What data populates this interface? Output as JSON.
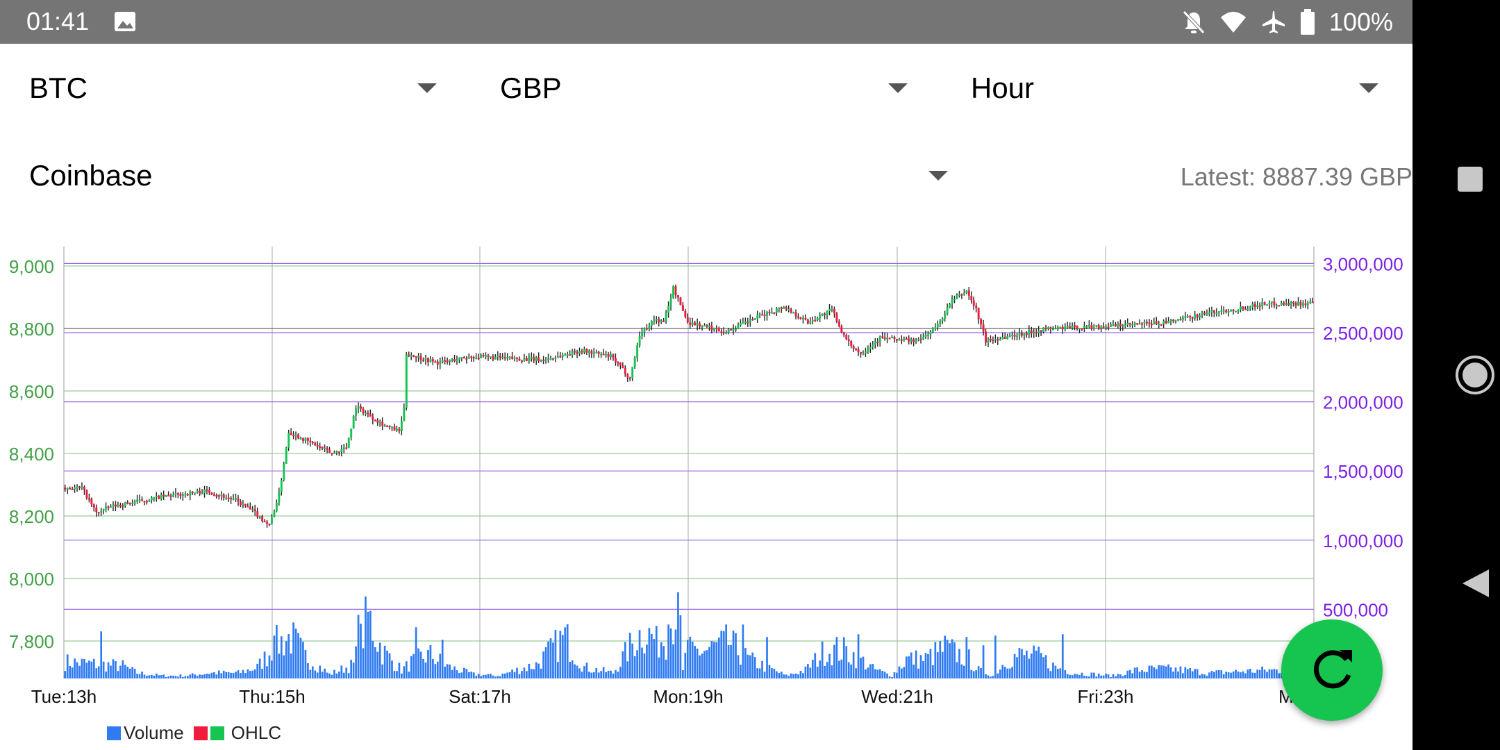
{
  "status_bar": {
    "time": "01:41",
    "battery": "100%",
    "icons": [
      "image-icon",
      "notifications-off-icon",
      "wifi-icon",
      "airplane-mode-icon",
      "battery-icon"
    ]
  },
  "selectors": {
    "coin": "BTC",
    "currency": "GBP",
    "interval": "Hour",
    "exchange": "Coinbase"
  },
  "latest_text": "Latest: 8887.39 GBP",
  "chart_data": {
    "type": "candlestick",
    "left_axis": {
      "ticks": [
        "9,000",
        "8,800",
        "8,600",
        "8,400",
        "8,200",
        "8,000",
        "7,800"
      ],
      "range": [
        7710,
        9030
      ],
      "color": "#43a047"
    },
    "right_axis": {
      "ticks": [
        "3,000,000",
        "2,500,000",
        "2,000,000",
        "1,500,000",
        "1,000,000",
        "500,000"
      ],
      "range": [
        0,
        3000000
      ],
      "color": "#7c1fe8"
    },
    "x_ticks": [
      "Tue:13h",
      "Thu:15h",
      "Sat:17h",
      "Mon:19h",
      "Wed:21h",
      "Fri:23h",
      "M"
    ],
    "reference_line": 8800,
    "ohlc_key_points": [
      [
        0,
        8290
      ],
      [
        8,
        8290
      ],
      [
        14,
        8210
      ],
      [
        20,
        8230
      ],
      [
        40,
        8260
      ],
      [
        60,
        8280
      ],
      [
        72,
        8250
      ],
      [
        80,
        8210
      ],
      [
        86,
        8170
      ],
      [
        90,
        8270
      ],
      [
        94,
        8470
      ],
      [
        112,
        8400
      ],
      [
        118,
        8420
      ],
      [
        122,
        8550
      ],
      [
        134,
        8490
      ],
      [
        140,
        8470
      ],
      [
        142,
        8540
      ],
      [
        143,
        8720
      ],
      [
        156,
        8690
      ],
      [
        170,
        8710
      ],
      [
        200,
        8700
      ],
      [
        216,
        8730
      ],
      [
        228,
        8710
      ],
      [
        234,
        8660
      ],
      [
        236,
        8640
      ],
      [
        240,
        8780
      ],
      [
        246,
        8830
      ],
      [
        250,
        8820
      ],
      [
        254,
        8930
      ],
      [
        260,
        8820
      ],
      [
        276,
        8790
      ],
      [
        290,
        8840
      ],
      [
        300,
        8870
      ],
      [
        310,
        8820
      ],
      [
        320,
        8860
      ],
      [
        326,
        8760
      ],
      [
        332,
        8720
      ],
      [
        340,
        8770
      ],
      [
        356,
        8760
      ],
      [
        364,
        8810
      ],
      [
        370,
        8890
      ],
      [
        376,
        8920
      ],
      [
        380,
        8860
      ],
      [
        384,
        8760
      ],
      [
        390,
        8770
      ],
      [
        410,
        8800
      ],
      [
        440,
        8810
      ],
      [
        460,
        8820
      ],
      [
        476,
        8850
      ],
      [
        486,
        8860
      ],
      [
        500,
        8880
      ]
    ],
    "volume_key_points": [
      [
        0,
        120000
      ],
      [
        24,
        90000
      ],
      [
        30,
        40000
      ],
      [
        40,
        20000
      ],
      [
        50,
        20000
      ],
      [
        60,
        40000
      ],
      [
        72,
        40000
      ],
      [
        80,
        80000
      ],
      [
        88,
        250000
      ],
      [
        94,
        300000
      ],
      [
        100,
        160000
      ],
      [
        110,
        30000
      ],
      [
        120,
        100000
      ],
      [
        126,
        450000
      ],
      [
        132,
        200000
      ],
      [
        140,
        60000
      ],
      [
        146,
        140000
      ],
      [
        152,
        170000
      ],
      [
        160,
        80000
      ],
      [
        170,
        30000
      ],
      [
        180,
        20000
      ],
      [
        188,
        60000
      ],
      [
        196,
        100000
      ],
      [
        208,
        300000
      ],
      [
        216,
        80000
      ],
      [
        222,
        60000
      ],
      [
        228,
        40000
      ],
      [
        234,
        200000
      ],
      [
        240,
        350000
      ],
      [
        246,
        280000
      ],
      [
        250,
        300000
      ],
      [
        254,
        500000
      ],
      [
        258,
        200000
      ],
      [
        266,
        200000
      ],
      [
        276,
        260000
      ],
      [
        284,
        140000
      ],
      [
        292,
        80000
      ],
      [
        300,
        20000
      ],
      [
        308,
        60000
      ],
      [
        316,
        200000
      ],
      [
        324,
        200000
      ],
      [
        330,
        150000
      ],
      [
        336,
        70000
      ],
      [
        344,
        20000
      ],
      [
        350,
        140000
      ],
      [
        358,
        140000
      ],
      [
        366,
        220000
      ],
      [
        376,
        140000
      ],
      [
        380,
        60000
      ],
      [
        386,
        20000
      ],
      [
        392,
        140000
      ],
      [
        398,
        170000
      ],
      [
        406,
        150000
      ],
      [
        412,
        80000
      ],
      [
        420,
        40000
      ],
      [
        436,
        20000
      ],
      [
        446,
        60000
      ],
      [
        456,
        70000
      ],
      [
        466,
        60000
      ],
      [
        476,
        40000
      ],
      [
        488,
        50000
      ],
      [
        500,
        60000
      ]
    ],
    "volume_spikes": [
      [
        15,
        340000
      ],
      [
        87,
        310000
      ],
      [
        122,
        460000
      ],
      [
        146,
        370000
      ],
      [
        157,
        280000
      ],
      [
        208,
        370000
      ],
      [
        239,
        350000
      ],
      [
        246,
        380000
      ],
      [
        251,
        390000
      ],
      [
        257,
        590000
      ],
      [
        257,
        60000
      ],
      [
        282,
        390000
      ],
      [
        292,
        300000
      ],
      [
        321,
        300000
      ],
      [
        330,
        320000
      ],
      [
        375,
        300000
      ],
      [
        382,
        240000
      ],
      [
        387,
        310000
      ],
      [
        415,
        320000
      ]
    ],
    "colors": {
      "up": "#17c452",
      "down": "#f01b3d",
      "volume": "#2f7bf2",
      "wick": "#222222"
    },
    "legend": [
      {
        "label": "Volume",
        "colors": [
          "#2f7bf2"
        ]
      },
      {
        "label": "OHLC",
        "colors": [
          "#f01b3d",
          "#17c452"
        ]
      }
    ]
  },
  "fab_icon": "refresh-icon",
  "nav": {
    "icons": [
      "recents-square-icon",
      "home-circle-icon",
      "back-triangle-icon"
    ]
  }
}
